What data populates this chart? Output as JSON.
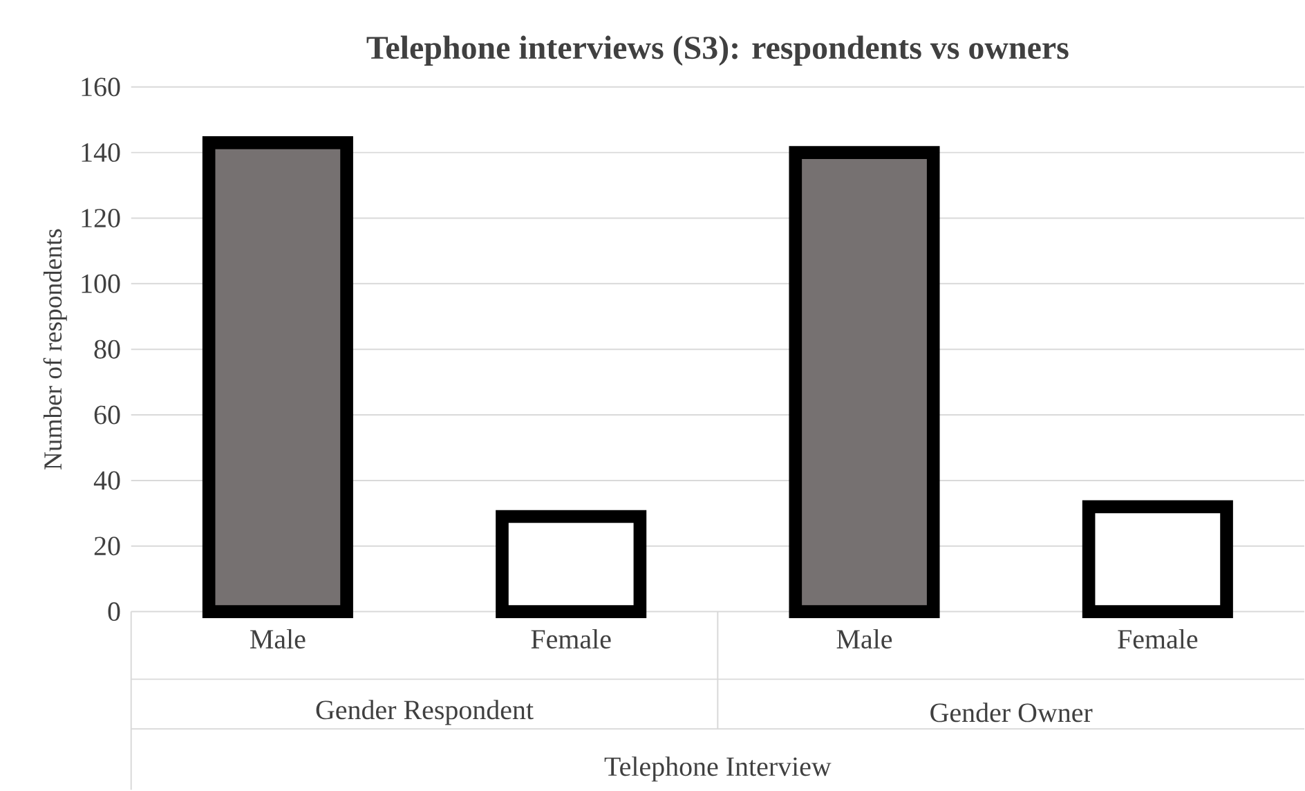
{
  "chart_data": {
    "type": "bar",
    "title": "Telephone interviews (S3): respondents vs owners",
    "categories": [
      "Male",
      "Female",
      "Male",
      "Female"
    ],
    "values": [
      143,
      29,
      140,
      32
    ],
    "colors": [
      "#767171",
      "#ffffff",
      "#767171",
      "#ffffff"
    ],
    "xlabel": "Telephone Interview",
    "ylabel": "Number of respondents",
    "annotations": [
      "Gender Respondent",
      "Gender Owner"
    ],
    "ylim": [
      0,
      160
    ],
    "yticks": [
      0,
      20,
      40,
      60,
      80,
      100,
      120,
      140,
      160
    ],
    "grid": "y"
  }
}
